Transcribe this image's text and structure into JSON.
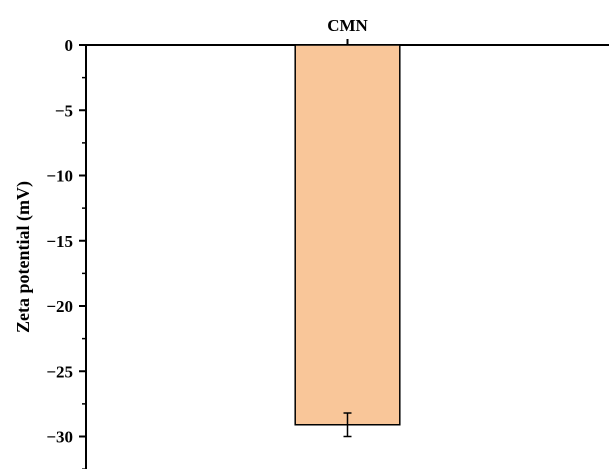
{
  "chart_data": {
    "type": "bar",
    "categories": [
      "CMN"
    ],
    "series": [
      {
        "values": [
          -29.1
        ],
        "error": [
          0.9
        ]
      }
    ],
    "ylabel": "Zeta potential (mV)",
    "xlabel": "",
    "ylim": [
      -32.5,
      0
    ],
    "yticks": [
      0,
      -5,
      -10,
      -15,
      -20,
      -25,
      -30
    ],
    "ytick_labels": [
      "0",
      "−5",
      "−10",
      "−15",
      "−20",
      "−25",
      "−30"
    ],
    "x_axis_position": "top",
    "grid": false,
    "legend": "none",
    "colors": {
      "bar_fill": "#f9c699",
      "bar_stroke": "#000000",
      "axis": "#000000"
    }
  }
}
